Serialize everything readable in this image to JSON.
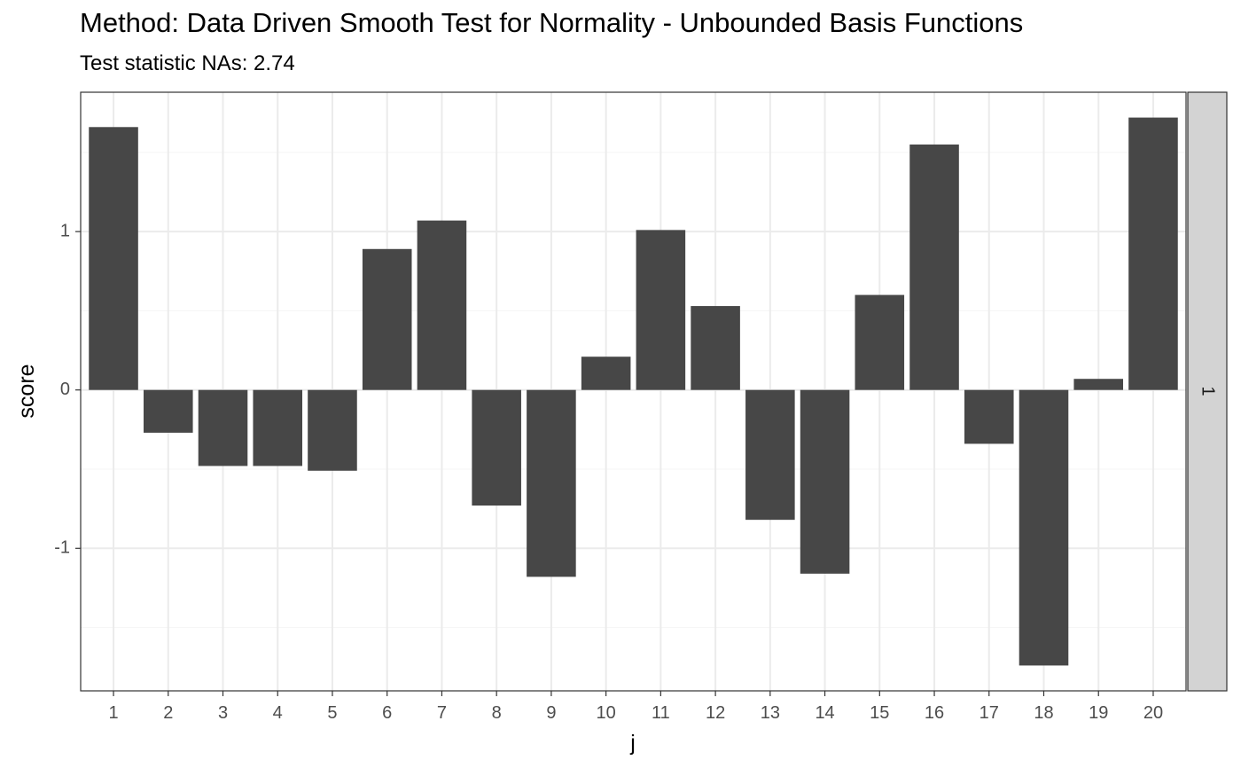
{
  "chart_data": {
    "type": "bar",
    "title": "Method: Data Driven Smooth Test for Normality - Unbounded Basis Functions",
    "subtitle": "Test statistic NAs: 2.74",
    "xlabel": "j",
    "ylabel": "score",
    "facet_label": "1",
    "categories": [
      "1",
      "2",
      "3",
      "4",
      "5",
      "6",
      "7",
      "8",
      "9",
      "10",
      "11",
      "12",
      "13",
      "14",
      "15",
      "16",
      "17",
      "18",
      "19",
      "20"
    ],
    "values": [
      1.66,
      -0.27,
      -0.48,
      -0.48,
      -0.51,
      0.89,
      1.07,
      -0.73,
      -1.18,
      0.21,
      1.01,
      0.53,
      -0.82,
      -1.16,
      0.6,
      1.55,
      -0.34,
      -1.74,
      0.07,
      1.72
    ],
    "yticks": [
      -1,
      0,
      1
    ],
    "ytick_labels": [
      "-1",
      "0",
      "1"
    ],
    "ylim": [
      -1.9,
      1.88
    ],
    "grid": true,
    "legend": "none",
    "colors": {
      "bar": "#474747",
      "grid_major": "#ebebeb",
      "grid_minor": "#f4f4f4",
      "strip": "#d3d3d3",
      "border": "#333333"
    }
  }
}
